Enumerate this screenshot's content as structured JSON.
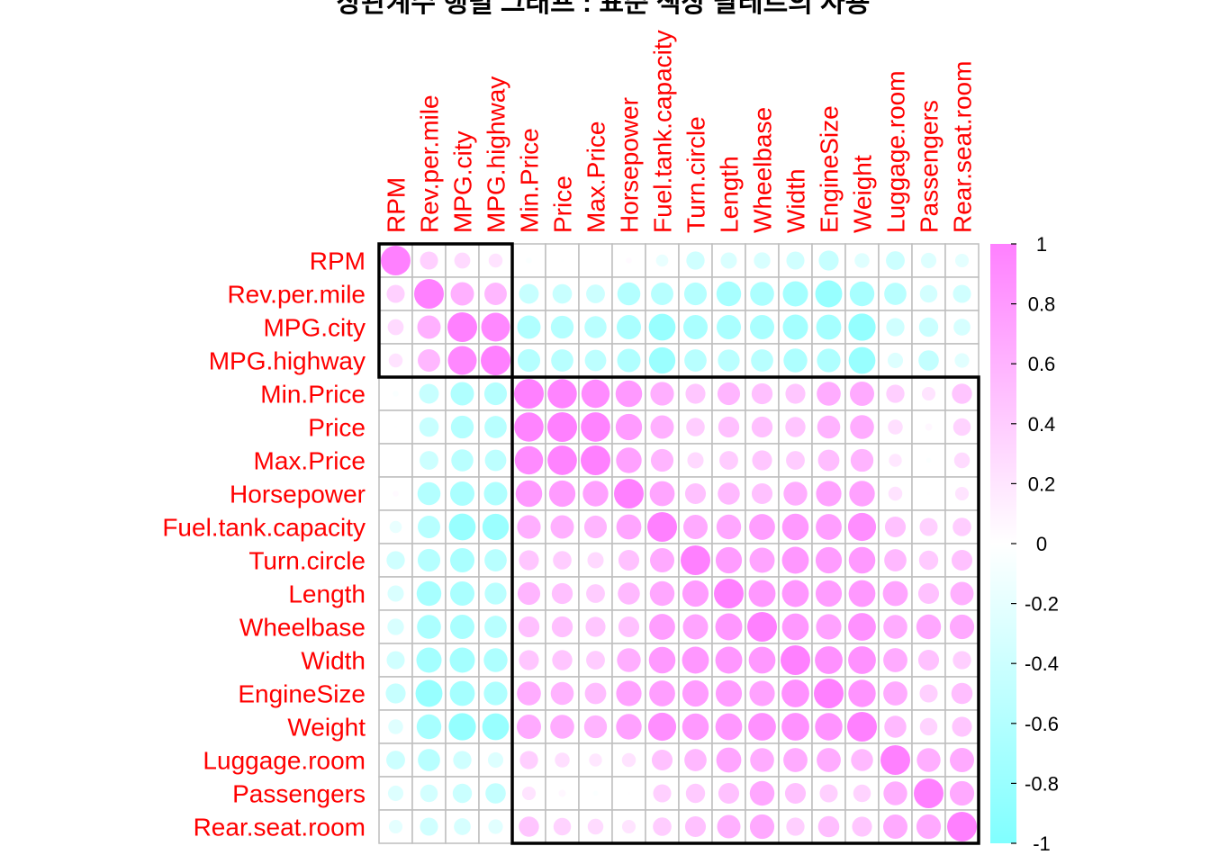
{
  "chart_data": {
    "type": "heatmap",
    "title": "상관계수 행렬 그래프 : 표준 색상 팔레트의 사용",
    "method": "circle",
    "variables": [
      "RPM",
      "Rev.per.mile",
      "MPG.city",
      "MPG.highway",
      "Min.Price",
      "Price",
      "Max.Price",
      "Horsepower",
      "Fuel.tank.capacity",
      "Turn.circle",
      "Length",
      "Wheelbase",
      "Width",
      "EngineSize",
      "Weight",
      "Luggage.room",
      "Passengers",
      "Rear.seat.room"
    ],
    "matrix": [
      [
        1.0,
        0.37,
        0.29,
        0.22,
        -0.04,
        -0.01,
        0.0,
        0.04,
        -0.17,
        -0.38,
        -0.3,
        -0.31,
        -0.37,
        -0.45,
        -0.25,
        -0.4,
        -0.27,
        -0.21
      ],
      [
        0.37,
        1.0,
        0.62,
        0.57,
        -0.44,
        -0.43,
        -0.4,
        -0.6,
        -0.57,
        -0.58,
        -0.69,
        -0.65,
        -0.72,
        -0.82,
        -0.69,
        -0.56,
        -0.35,
        -0.37
      ],
      [
        0.29,
        0.62,
        1.0,
        0.94,
        -0.62,
        -0.59,
        -0.55,
        -0.67,
        -0.81,
        -0.67,
        -0.67,
        -0.67,
        -0.72,
        -0.71,
        -0.84,
        -0.38,
        -0.42,
        -0.32
      ],
      [
        0.22,
        0.57,
        0.94,
        1.0,
        -0.58,
        -0.56,
        -0.52,
        -0.62,
        -0.79,
        -0.56,
        -0.54,
        -0.56,
        -0.64,
        -0.63,
        -0.81,
        -0.27,
        -0.47,
        -0.24
      ],
      [
        -0.04,
        -0.44,
        -0.62,
        -0.58,
        1.0,
        0.97,
        0.91,
        0.8,
        0.63,
        0.45,
        0.58,
        0.5,
        0.45,
        0.65,
        0.67,
        0.38,
        0.21,
        0.46
      ],
      [
        -0.01,
        -0.43,
        -0.59,
        -0.56,
        0.97,
        1.0,
        0.98,
        0.79,
        0.62,
        0.39,
        0.5,
        0.5,
        0.46,
        0.6,
        0.65,
        0.25,
        0.06,
        0.35
      ],
      [
        0.0,
        -0.4,
        -0.55,
        -0.52,
        0.91,
        0.98,
        1.0,
        0.74,
        0.58,
        0.3,
        0.4,
        0.45,
        0.4,
        0.52,
        0.59,
        0.19,
        -0.03,
        0.28
      ],
      [
        0.04,
        -0.6,
        -0.67,
        -0.62,
        0.8,
        0.79,
        0.74,
        1.0,
        0.71,
        0.49,
        0.55,
        0.49,
        0.64,
        0.73,
        0.74,
        0.22,
        0.01,
        0.21
      ],
      [
        -0.17,
        -0.57,
        -0.81,
        -0.79,
        0.63,
        0.62,
        0.58,
        0.71,
        1.0,
        0.67,
        0.69,
        0.76,
        0.8,
        0.76,
        0.89,
        0.49,
        0.37,
        0.39
      ],
      [
        -0.38,
        -0.58,
        -0.67,
        -0.56,
        0.45,
        0.39,
        0.3,
        0.49,
        0.67,
        1.0,
        0.78,
        0.72,
        0.82,
        0.78,
        0.8,
        0.56,
        0.42,
        0.49
      ],
      [
        -0.3,
        -0.69,
        -0.67,
        -0.54,
        0.58,
        0.5,
        0.4,
        0.55,
        0.69,
        0.78,
        1.0,
        0.82,
        0.82,
        0.78,
        0.81,
        0.71,
        0.49,
        0.62
      ],
      [
        -0.31,
        -0.65,
        -0.67,
        -0.56,
        0.5,
        0.5,
        0.45,
        0.49,
        0.76,
        0.72,
        0.82,
        1.0,
        0.81,
        0.73,
        0.87,
        0.65,
        0.69,
        0.68
      ],
      [
        -0.37,
        -0.72,
        -0.72,
        -0.64,
        0.45,
        0.46,
        0.4,
        0.64,
        0.8,
        0.82,
        0.82,
        0.81,
        1.0,
        0.87,
        0.87,
        0.66,
        0.49,
        0.38
      ],
      [
        -0.45,
        -0.82,
        -0.71,
        -0.63,
        0.65,
        0.6,
        0.52,
        0.73,
        0.76,
        0.78,
        0.78,
        0.73,
        0.87,
        1.0,
        0.85,
        0.66,
        0.37,
        0.51
      ],
      [
        -0.25,
        -0.69,
        -0.84,
        -0.81,
        0.67,
        0.65,
        0.59,
        0.74,
        0.89,
        0.8,
        0.81,
        0.87,
        0.87,
        0.85,
        1.0,
        0.55,
        0.35,
        0.45
      ],
      [
        -0.4,
        -0.56,
        -0.38,
        -0.27,
        0.38,
        0.25,
        0.19,
        0.22,
        0.49,
        0.56,
        0.71,
        0.65,
        0.66,
        0.66,
        0.55,
        1.0,
        0.64,
        0.67
      ],
      [
        -0.27,
        -0.35,
        -0.42,
        -0.47,
        0.21,
        0.06,
        -0.03,
        0.01,
        0.37,
        0.42,
        0.49,
        0.69,
        0.49,
        0.37,
        0.35,
        0.64,
        1.0,
        0.68
      ],
      [
        -0.21,
        -0.37,
        -0.32,
        -0.24,
        0.46,
        0.35,
        0.28,
        0.21,
        0.39,
        0.49,
        0.62,
        0.68,
        0.38,
        0.51,
        0.45,
        0.67,
        0.68,
        1.0
      ]
    ],
    "clusters": [
      [
        "RPM",
        "Rev.per.mile",
        "MPG.city",
        "MPG.highway"
      ],
      [
        "Min.Price",
        "Price",
        "Max.Price",
        "Horsepower",
        "Fuel.tank.capacity",
        "Turn.circle",
        "Length",
        "Wheelbase",
        "Width",
        "EngineSize",
        "Weight",
        "Luggage.room",
        "Passengers",
        "Rear.seat.room"
      ]
    ],
    "colorbar": {
      "range": [
        -1,
        1
      ],
      "ticks": [
        "1",
        "0.8",
        "0.6",
        "0.4",
        "0.2",
        "0",
        "-0.2",
        "-0.4",
        "-0.6",
        "-0.8",
        "-1"
      ],
      "palette": "cm.colors"
    },
    "colors": {
      "negative": "#80ffff",
      "zero": "#ffffff",
      "positive": "#ff80ff",
      "label": "#ff0000",
      "grid": "#bebebe",
      "cluster_border": "#000000"
    }
  }
}
